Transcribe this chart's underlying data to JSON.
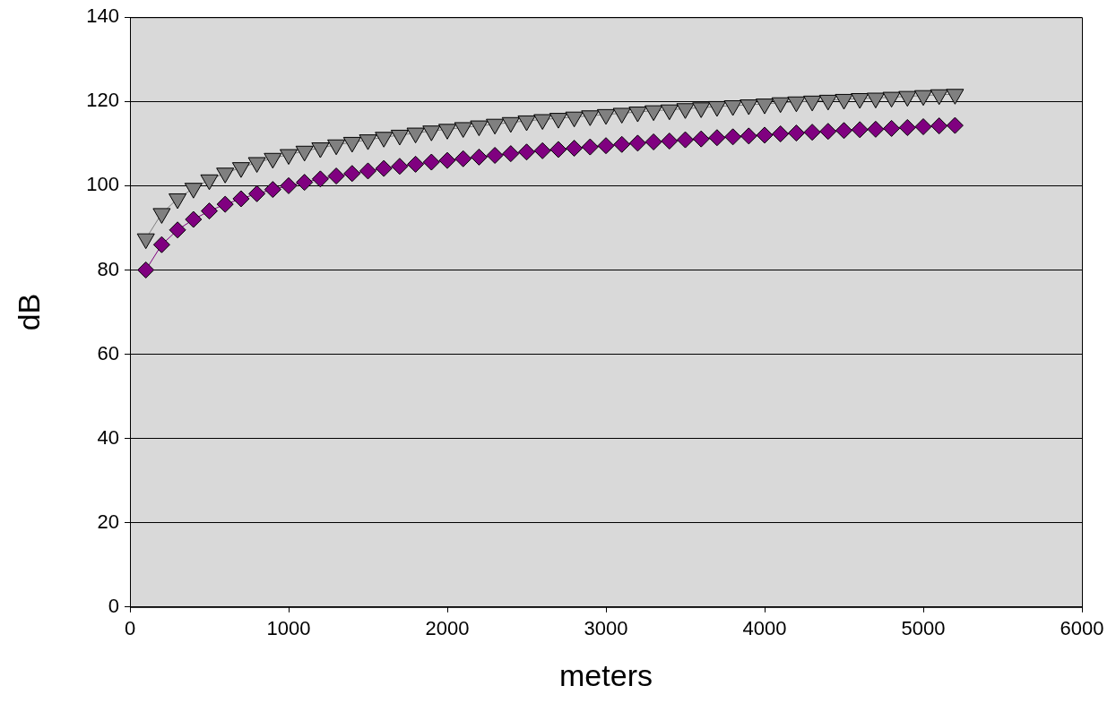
{
  "chart_data": {
    "type": "line",
    "xlabel": "meters",
    "ylabel": "dB",
    "x": [
      100,
      200,
      300,
      400,
      500,
      600,
      700,
      800,
      900,
      1000,
      1100,
      1200,
      1300,
      1400,
      1500,
      1600,
      1700,
      1800,
      1900,
      2000,
      2100,
      2200,
      2300,
      2400,
      2500,
      2600,
      2700,
      2800,
      2900,
      3000,
      3100,
      3200,
      3300,
      3400,
      3500,
      3600,
      3700,
      3800,
      3900,
      4000,
      4100,
      4200,
      4300,
      4400,
      4500,
      4600,
      4700,
      4800,
      4900,
      5000,
      5100,
      5200
    ],
    "series": [
      {
        "color": "#800080",
        "marker": "diamond",
        "values": [
          80.0,
          86.0,
          89.5,
          92.0,
          94.0,
          95.6,
          96.9,
          98.1,
          99.1,
          100.0,
          100.8,
          101.6,
          102.3,
          102.9,
          103.5,
          104.1,
          104.6,
          105.1,
          105.6,
          106.0,
          106.4,
          106.8,
          107.2,
          107.6,
          108.0,
          108.3,
          108.6,
          108.9,
          109.2,
          109.5,
          109.8,
          110.1,
          110.4,
          110.6,
          110.9,
          111.1,
          111.4,
          111.6,
          111.8,
          112.0,
          112.3,
          112.5,
          112.7,
          112.9,
          113.1,
          113.3,
          113.4,
          113.6,
          113.8,
          114.0,
          114.2,
          114.3
        ]
      },
      {
        "color": "#808080",
        "marker": "triangle",
        "values": [
          87.4,
          93.4,
          96.9,
          99.4,
          101.4,
          103.0,
          104.3,
          105.5,
          106.5,
          107.4,
          108.2,
          109.0,
          109.7,
          110.3,
          110.9,
          111.5,
          112.0,
          112.5,
          113.0,
          113.4,
          113.8,
          114.2,
          114.6,
          115.0,
          115.4,
          115.7,
          116.0,
          116.3,
          116.6,
          116.9,
          117.2,
          117.5,
          117.8,
          118.0,
          118.3,
          118.5,
          118.8,
          119.0,
          119.2,
          119.4,
          119.7,
          119.9,
          120.1,
          120.3,
          120.5,
          120.7,
          120.8,
          121.0,
          121.2,
          121.4,
          121.6,
          121.7
        ]
      }
    ],
    "xlim": [
      0,
      6000
    ],
    "xticks": [
      0,
      1000,
      2000,
      3000,
      4000,
      5000,
      6000
    ],
    "ylim": [
      0,
      140
    ],
    "yticks": [
      0,
      20,
      40,
      60,
      80,
      100,
      120,
      140
    ],
    "grid": "y",
    "legend": false
  }
}
